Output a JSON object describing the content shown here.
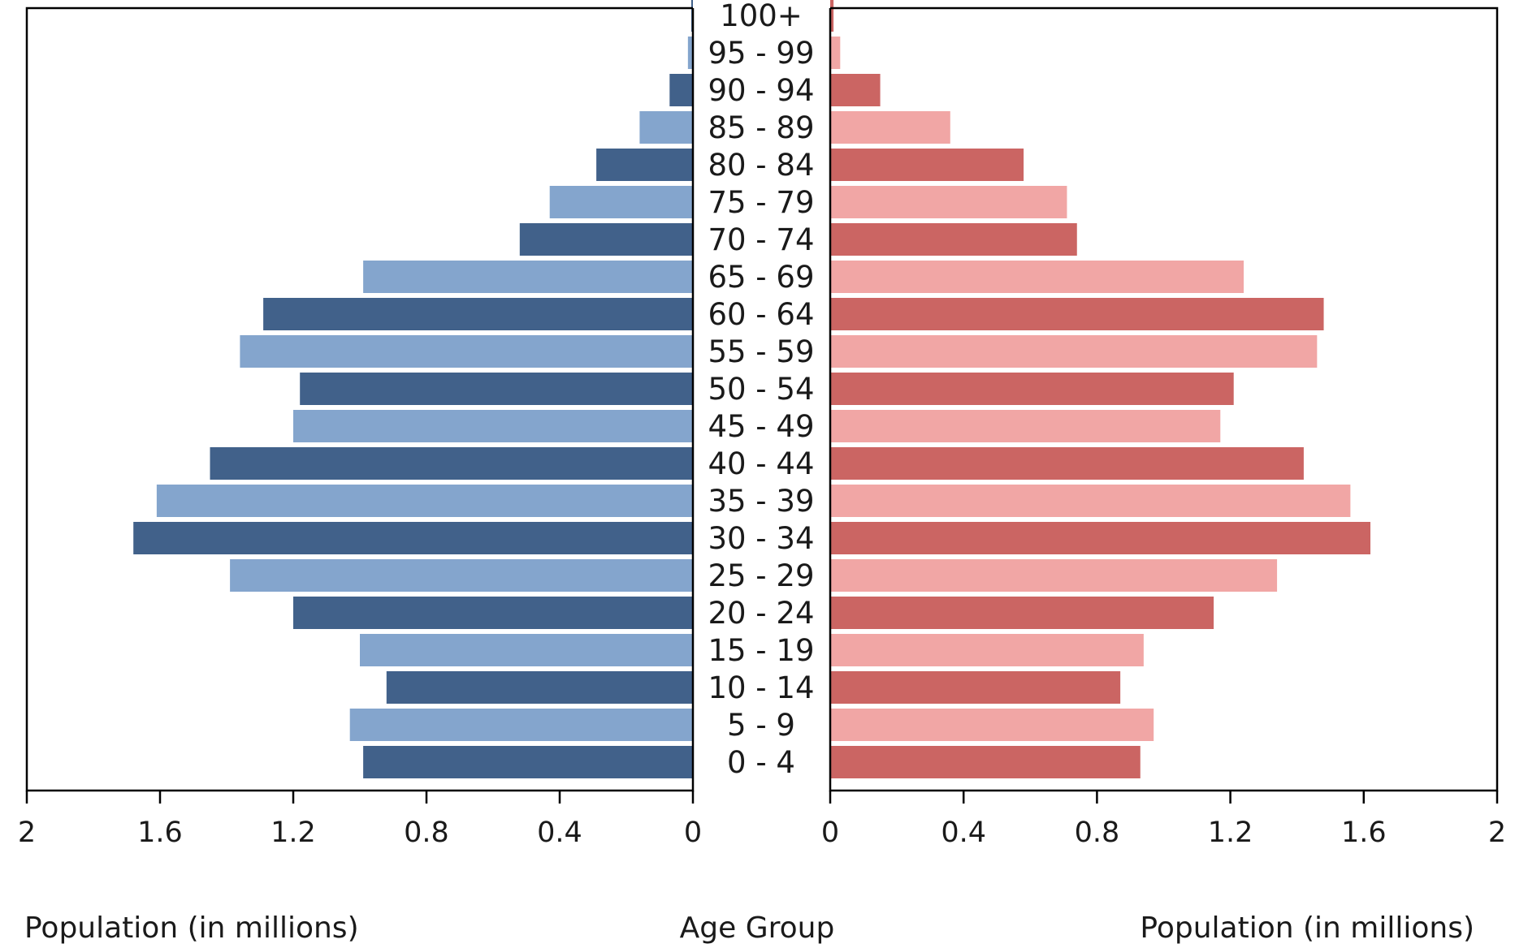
{
  "chart_data": {
    "type": "bar",
    "subtype": "population-pyramid",
    "categories": [
      "0 - 4",
      "5 - 9",
      "10 - 14",
      "15 - 19",
      "20 - 24",
      "25 - 29",
      "30 - 34",
      "35 - 39",
      "40 - 44",
      "45 - 49",
      "50 - 54",
      "55 - 59",
      "60 - 64",
      "65 - 69",
      "70 - 74",
      "75 - 79",
      "80 - 84",
      "85 - 89",
      "90 - 94",
      "95 - 99",
      "100+"
    ],
    "series": [
      {
        "side": "left",
        "values": [
          0.99,
          1.03,
          0.92,
          1.0,
          1.2,
          1.39,
          1.68,
          1.61,
          1.45,
          1.2,
          1.18,
          1.36,
          1.29,
          0.99,
          0.52,
          0.43,
          0.29,
          0.16,
          0.07,
          0.015,
          0.005
        ],
        "colors": [
          "#41618a",
          "#84a5cd"
        ]
      },
      {
        "side": "right",
        "values": [
          0.93,
          0.97,
          0.87,
          0.94,
          1.15,
          1.34,
          1.62,
          1.56,
          1.42,
          1.17,
          1.21,
          1.46,
          1.48,
          1.24,
          0.74,
          0.71,
          0.58,
          0.36,
          0.15,
          0.03,
          0.01
        ],
        "colors": [
          "#cb6563",
          "#f1a6a5"
        ]
      }
    ],
    "center_label": "Age Group",
    "left_xlabel": "Population (in millions)",
    "right_xlabel": "Population (in millions)",
    "xlim": [
      0,
      2
    ],
    "left_ticks": [
      "2",
      "1.6",
      "1.2",
      "0.8",
      "0.4",
      "0"
    ],
    "right_ticks": [
      "0",
      "0.4",
      "0.8",
      "1.2",
      "1.6",
      "2"
    ],
    "tick_values": [
      2,
      1.6,
      1.2,
      0.8,
      0.4,
      0
    ]
  }
}
